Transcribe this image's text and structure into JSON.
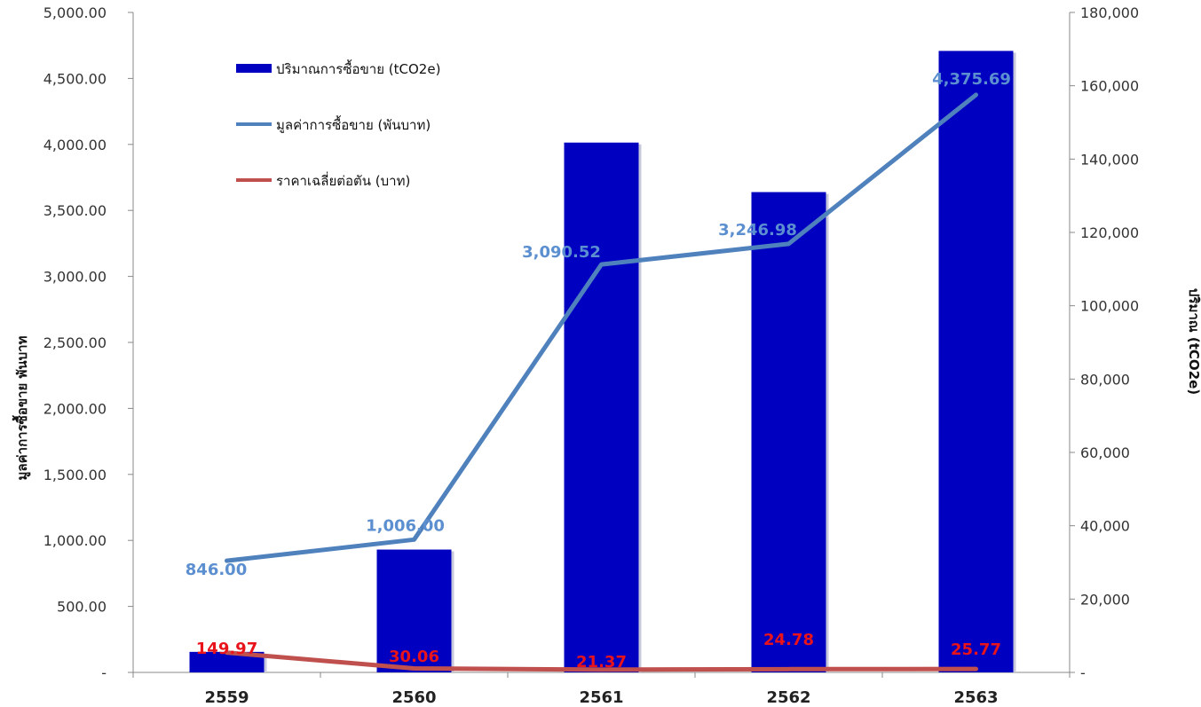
{
  "chart_data": {
    "type": "bar",
    "categories": [
      "2559",
      "2560",
      "2561",
      "2562",
      "2563"
    ],
    "left_axis": {
      "label": "มูลค่าการซื้อขาย พันบาท",
      "ylim": [
        0,
        5000
      ],
      "ticks": [
        "-",
        "500.00",
        "1,000.00",
        "1,500.00",
        "2,000.00",
        "2,500.00",
        "3,000.00",
        "3,500.00",
        "4,000.00",
        "4,500.00",
        "5,000.00"
      ]
    },
    "right_axis": {
      "label": "ปริมาณ (tCO2e)",
      "ylim": [
        0,
        180000
      ],
      "ticks": [
        "-",
        "20,000",
        "40,000",
        "60,000",
        "80,000",
        "100,000",
        "120,000",
        "140,000",
        "160,000",
        "180,000"
      ]
    },
    "grid": false,
    "legend_position": "top-left",
    "series": [
      {
        "name": "ปริมาณการซื้อขาย (tCO2e)",
        "kind": "bar",
        "axis": "right",
        "color": "#0000c0",
        "values": [
          5600,
          33500,
          144500,
          131000,
          169500
        ]
      },
      {
        "name": "มูลค่าการซื้อขาย (พันบาท)",
        "kind": "line",
        "axis": "left",
        "color": "#4f81bd",
        "label_color": "#5b8fd0",
        "values": [
          846.0,
          1006.0,
          3090.52,
          3246.98,
          4375.69
        ],
        "labels": [
          "846.00",
          "1,006.00",
          "3,090.52",
          "3,246.98",
          "4,375.69"
        ]
      },
      {
        "name": "ราคาเฉลี่ยต่อตัน (บาท)",
        "kind": "line",
        "axis": "left",
        "color": "#c0504d",
        "label_color": "#e8131b",
        "values": [
          149.97,
          30.06,
          21.37,
          24.78,
          25.77
        ],
        "labels": [
          "149.97",
          "30.06",
          "21.37",
          "24.78",
          "25.77"
        ]
      }
    ]
  }
}
